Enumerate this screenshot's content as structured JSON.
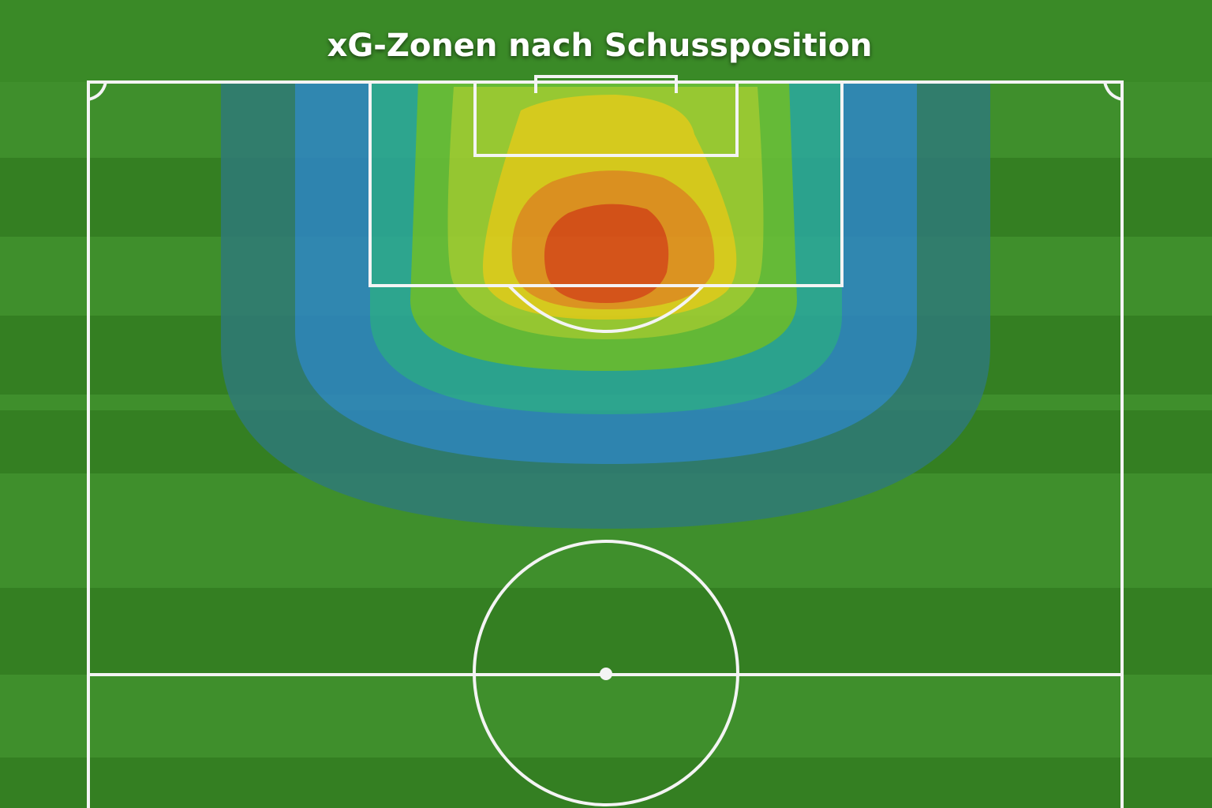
{
  "title": "xG-Zonen nach Schussposition"
}
